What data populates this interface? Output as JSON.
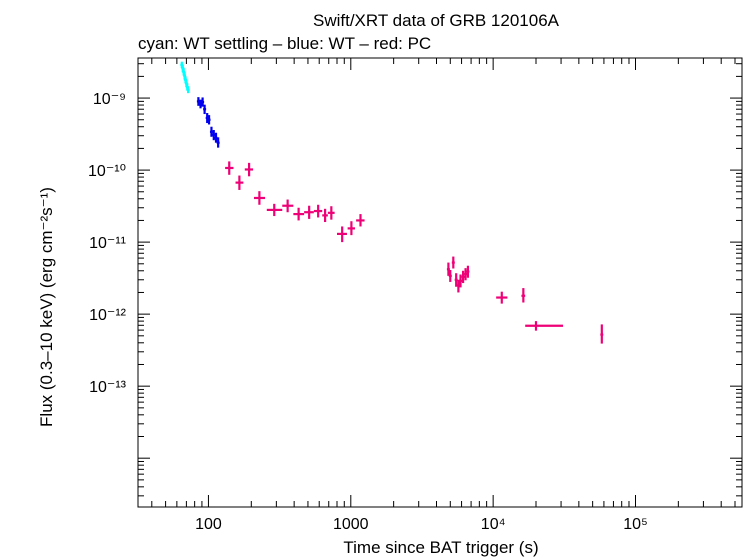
{
  "chart_data": {
    "type": "scatter",
    "title": "Swift/XRT data of GRB 120106A",
    "subtitle": "cyan: WT settling – blue: WT – red: PC",
    "xlabel": "Time since BAT trigger (s)",
    "ylabel": "Flux (0.3–10 keV) (erg cm⁻²s⁻¹)",
    "x_scale": "log",
    "y_scale": "log",
    "xlim": [
      32,
      560000
    ],
    "ylim": [
      2.1e-15,
      3.6e-09
    ],
    "grid": false,
    "x_ticks": [
      {
        "value": 100,
        "label": "100"
      },
      {
        "value": 1000,
        "label": "1000"
      },
      {
        "value": 10000,
        "label": "10⁴"
      },
      {
        "value": 100000,
        "label": "10⁵"
      }
    ],
    "y_ticks": [
      {
        "value": 1e-09,
        "label": "10⁻⁹"
      },
      {
        "value": 1e-10,
        "label": "10⁻¹⁰"
      },
      {
        "value": 1e-11,
        "label": "10⁻¹¹"
      },
      {
        "value": 1e-12,
        "label": "10⁻¹²"
      },
      {
        "value": 1e-13,
        "label": "10⁻¹³"
      }
    ],
    "series": [
      {
        "name": "WT settling",
        "color": "#00ffff",
        "points": [
          {
            "x": 65,
            "xlo": 64.5,
            "xhi": 65.5,
            "y": 2.9e-09,
            "ylo": 2.6e-09,
            "yhi": 3.2e-09
          },
          {
            "x": 66,
            "xlo": 65.5,
            "xhi": 66.5,
            "y": 2.6e-09,
            "ylo": 2.3e-09,
            "yhi": 2.9e-09
          },
          {
            "x": 67,
            "xlo": 66.5,
            "xhi": 67.5,
            "y": 2.3e-09,
            "ylo": 2.05e-09,
            "yhi": 2.6e-09
          },
          {
            "x": 68,
            "xlo": 67.5,
            "xhi": 68.5,
            "y": 2.05e-09,
            "ylo": 1.8e-09,
            "yhi": 2.3e-09
          },
          {
            "x": 69,
            "xlo": 68.5,
            "xhi": 69.5,
            "y": 1.8e-09,
            "ylo": 1.6e-09,
            "yhi": 2e-09
          },
          {
            "x": 70,
            "xlo": 69.5,
            "xhi": 70.5,
            "y": 1.6e-09,
            "ylo": 1.42e-09,
            "yhi": 1.8e-09
          },
          {
            "x": 71,
            "xlo": 70.5,
            "xhi": 71.5,
            "y": 1.42e-09,
            "ylo": 1.28e-09,
            "yhi": 1.6e-09
          },
          {
            "x": 72,
            "xlo": 71.5,
            "xhi": 72.5,
            "y": 1.3e-09,
            "ylo": 1.17e-09,
            "yhi": 1.45e-09
          }
        ]
      },
      {
        "name": "WT",
        "color": "#0000ee",
        "points": [
          {
            "x": 85,
            "xlo": 83,
            "xhi": 87,
            "y": 9e-10,
            "ylo": 7.8e-10,
            "yhi": 1.03e-09
          },
          {
            "x": 88,
            "xlo": 86,
            "xhi": 90,
            "y": 8.3e-10,
            "ylo": 7.2e-10,
            "yhi": 9.5e-10
          },
          {
            "x": 91,
            "xlo": 89,
            "xhi": 93,
            "y": 8.8e-10,
            "ylo": 7.6e-10,
            "yhi": 1.02e-09
          },
          {
            "x": 94,
            "xlo": 92,
            "xhi": 96,
            "y": 7e-10,
            "ylo": 6e-10,
            "yhi": 8.1e-10
          },
          {
            "x": 98,
            "xlo": 96,
            "xhi": 100,
            "y": 5.3e-10,
            "ylo": 4.5e-10,
            "yhi": 6.2e-10
          },
          {
            "x": 101,
            "xlo": 99,
            "xhi": 103,
            "y": 5e-10,
            "ylo": 4.3e-10,
            "yhi": 5.8e-10
          },
          {
            "x": 105,
            "xlo": 103,
            "xhi": 107,
            "y": 3.4e-10,
            "ylo": 2.9e-10,
            "yhi": 4e-10
          },
          {
            "x": 109,
            "xlo": 107,
            "xhi": 111,
            "y": 3.1e-10,
            "ylo": 2.6e-10,
            "yhi": 3.6e-10
          },
          {
            "x": 113,
            "xlo": 111,
            "xhi": 115,
            "y": 2.8e-10,
            "ylo": 2.4e-10,
            "yhi": 3.3e-10
          },
          {
            "x": 117,
            "xlo": 115,
            "xhi": 119,
            "y": 2.4e-10,
            "ylo": 2.05e-10,
            "yhi": 2.85e-10
          }
        ]
      },
      {
        "name": "PC",
        "color": "#ee0077",
        "points": [
          {
            "x": 140,
            "xlo": 131,
            "xhi": 150,
            "y": 1.07e-10,
            "ylo": 8.6e-11,
            "yhi": 1.32e-10
          },
          {
            "x": 165,
            "xlo": 155,
            "xhi": 176,
            "y": 6.7e-11,
            "ylo": 5.3e-11,
            "yhi": 8.4e-11
          },
          {
            "x": 193,
            "xlo": 180,
            "xhi": 206,
            "y": 1.02e-10,
            "ylo": 8.2e-11,
            "yhi": 1.26e-10
          },
          {
            "x": 228,
            "xlo": 209,
            "xhi": 250,
            "y": 4.1e-11,
            "ylo": 3.3e-11,
            "yhi": 5.1e-11
          },
          {
            "x": 290,
            "xlo": 257,
            "xhi": 330,
            "y": 2.8e-11,
            "ylo": 2.3e-11,
            "yhi": 3.4e-11
          },
          {
            "x": 360,
            "xlo": 330,
            "xhi": 395,
            "y": 3.2e-11,
            "ylo": 2.6e-11,
            "yhi": 3.9e-11
          },
          {
            "x": 430,
            "xlo": 395,
            "xhi": 470,
            "y": 2.45e-11,
            "ylo": 2e-11,
            "yhi": 3e-11
          },
          {
            "x": 510,
            "xlo": 470,
            "xhi": 550,
            "y": 2.6e-11,
            "ylo": 2.1e-11,
            "yhi": 3.2e-11
          },
          {
            "x": 590,
            "xlo": 550,
            "xhi": 630,
            "y": 2.7e-11,
            "ylo": 2.2e-11,
            "yhi": 3.3e-11
          },
          {
            "x": 660,
            "xlo": 630,
            "xhi": 690,
            "y": 2.35e-11,
            "ylo": 1.9e-11,
            "yhi": 2.9e-11
          },
          {
            "x": 730,
            "xlo": 690,
            "xhi": 770,
            "y": 2.55e-11,
            "ylo": 2.05e-11,
            "yhi": 3.15e-11
          },
          {
            "x": 870,
            "xlo": 800,
            "xhi": 940,
            "y": 1.3e-11,
            "ylo": 1e-11,
            "yhi": 1.65e-11
          },
          {
            "x": 1010,
            "xlo": 950,
            "xhi": 1070,
            "y": 1.55e-11,
            "ylo": 1.25e-11,
            "yhi": 1.95e-11
          },
          {
            "x": 1170,
            "xlo": 1090,
            "xhi": 1250,
            "y": 2e-11,
            "ylo": 1.65e-11,
            "yhi": 2.45e-11
          },
          {
            "x": 4850,
            "xlo": 4750,
            "xhi": 4950,
            "y": 4.2e-12,
            "ylo": 3.4e-12,
            "yhi": 5.2e-12
          },
          {
            "x": 5000,
            "xlo": 4950,
            "xhi": 5050,
            "y": 3.4e-12,
            "ylo": 2.8e-12,
            "yhi": 4.1e-12
          },
          {
            "x": 5250,
            "xlo": 5150,
            "xhi": 5350,
            "y": 5.2e-12,
            "ylo": 4.3e-12,
            "yhi": 6.3e-12
          },
          {
            "x": 5500,
            "xlo": 5400,
            "xhi": 5600,
            "y": 3e-12,
            "ylo": 2.4e-12,
            "yhi": 3.7e-12
          },
          {
            "x": 5700,
            "xlo": 5600,
            "xhi": 5800,
            "y": 2.5e-12,
            "ylo": 2e-12,
            "yhi": 3e-12
          },
          {
            "x": 5900,
            "xlo": 5800,
            "xhi": 6000,
            "y": 2.9e-12,
            "ylo": 2.35e-12,
            "yhi": 3.55e-12
          },
          {
            "x": 6150,
            "xlo": 6050,
            "xhi": 6250,
            "y": 3.3e-12,
            "ylo": 2.7e-12,
            "yhi": 4e-12
          },
          {
            "x": 6400,
            "xlo": 6300,
            "xhi": 6500,
            "y": 3.6e-12,
            "ylo": 2.95e-12,
            "yhi": 4.35e-12
          },
          {
            "x": 6650,
            "xlo": 6550,
            "xhi": 6750,
            "y": 3.9e-12,
            "ylo": 3.2e-12,
            "yhi": 4.7e-12
          },
          {
            "x": 11500,
            "xlo": 10500,
            "xhi": 12600,
            "y": 1.7e-12,
            "ylo": 1.4e-12,
            "yhi": 2.05e-12
          },
          {
            "x": 16300,
            "xlo": 15800,
            "xhi": 16800,
            "y": 1.8e-12,
            "ylo": 1.45e-12,
            "yhi": 2.3e-12
          },
          {
            "x": 20000,
            "xlo": 16800,
            "xhi": 31000,
            "y": 6.9e-13,
            "ylo": 5.9e-13,
            "yhi": 8e-13
          },
          {
            "x": 58000,
            "xlo": 57000,
            "xhi": 59000,
            "y": 5.2e-13,
            "ylo": 3.9e-13,
            "yhi": 7.2e-13
          }
        ]
      }
    ]
  }
}
